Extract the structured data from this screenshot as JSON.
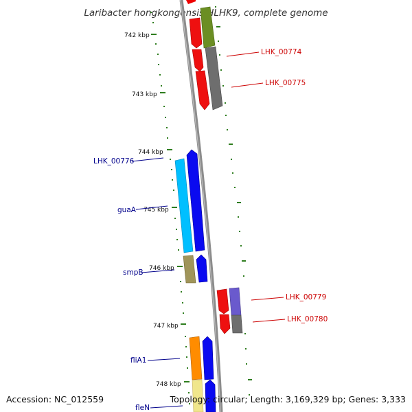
{
  "title": "Laribacter hongkongensis HLHK9, complete genome",
  "accession_text": "Accession: NC_012559",
  "summary_text": "Topology: circular; Length: 3,169,329 bp; Genes: 3,333",
  "ticks": [
    "742 kbp",
    "743 kbp",
    "744 kbp",
    "745 kbp",
    "746 kbp",
    "747 kbp",
    "748 kbp"
  ],
  "colors": {
    "forward_label": "#cc0000",
    "reverse_label": "#00008b",
    "backbone": "#8c8c8c",
    "tick": "#2e7d1e"
  },
  "genes": [
    {
      "label": "LHK_00774",
      "strand": "forward"
    },
    {
      "label": "LHK_00775",
      "strand": "forward"
    },
    {
      "label": "LHK_00776",
      "strand": "reverse"
    },
    {
      "label": "guaA",
      "strand": "reverse"
    },
    {
      "label": "smpB",
      "strand": "reverse"
    },
    {
      "label": "LHK_00779",
      "strand": "forward"
    },
    {
      "label": "LHK_00780",
      "strand": "forward"
    },
    {
      "label": "fliA1",
      "strand": "reverse"
    },
    {
      "label": "fleN",
      "strand": "reverse"
    }
  ]
}
